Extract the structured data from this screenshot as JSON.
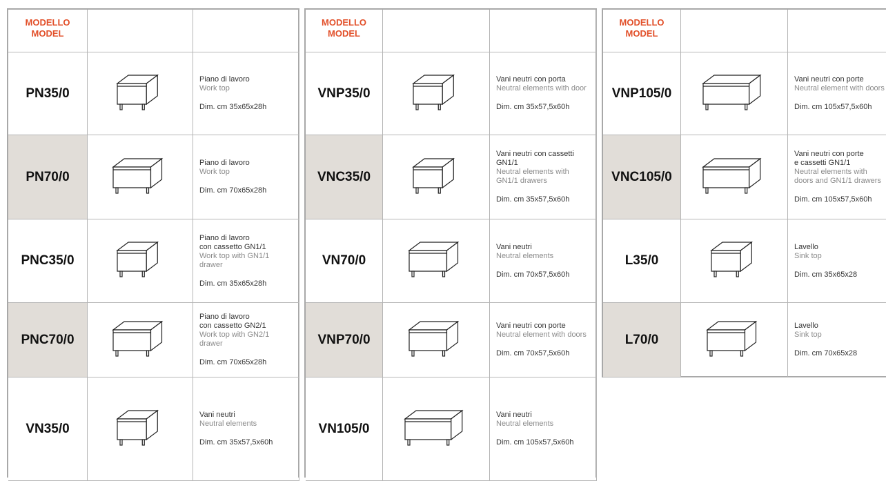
{
  "tables": [
    {
      "header": [
        "MODELLO",
        "MODEL"
      ],
      "rows": [
        {
          "model": "PN35/0",
          "it": [
            "Piano di lavoro"
          ],
          "en": [
            "Work top"
          ],
          "dim": "Dim. cm 35x65x28h"
        },
        {
          "model": "PN70/0",
          "it": [
            "Piano di lavoro"
          ],
          "en": [
            "Work top"
          ],
          "dim": "Dim. cm 70x65x28h"
        },
        {
          "model": "PNC35/0",
          "it": [
            "Piano di lavoro",
            "con cassetto GN1/1"
          ],
          "en": [
            "Work top with GN1/1",
            "drawer"
          ],
          "dim": "Dim. cm 35x65x28h"
        },
        {
          "model": "PNC70/0",
          "it": [
            "Piano di lavoro",
            "con cassetto GN2/1"
          ],
          "en": [
            "Work top with GN2/1",
            "drawer"
          ],
          "dim": "Dim. cm 70x65x28h"
        },
        {
          "model": "VN35/0",
          "it": [
            "Vani neutri"
          ],
          "en": [
            "Neutral elements"
          ],
          "dim": "Dim. cm 35x57,5x60h"
        }
      ]
    },
    {
      "header": [
        "MODELLO",
        "MODEL"
      ],
      "rows": [
        {
          "model": "VNP35/0",
          "it": [
            "Vani neutri con porta"
          ],
          "en": [
            "Neutral elements with door"
          ],
          "dim": "Dim. cm 35x57,5x60h"
        },
        {
          "model": "VNC35/0",
          "it": [
            "Vani neutri con cassetti GN1/1"
          ],
          "en": [
            "Neutral elements with",
            "GN1/1 drawers"
          ],
          "dim": "Dim. cm 35x57,5x60h"
        },
        {
          "model": "VN70/0",
          "it": [
            "Vani neutri"
          ],
          "en": [
            "Neutral elements"
          ],
          "dim": "Dim. cm 70x57,5x60h"
        },
        {
          "model": "VNP70/0",
          "it": [
            "Vani neutri con porte"
          ],
          "en": [
            "Neutral element with doors"
          ],
          "dim": "Dim. cm 70x57,5x60h"
        },
        {
          "model": "VN105/0",
          "it": [
            "Vani neutri"
          ],
          "en": [
            "Neutral elements"
          ],
          "dim": "Dim. cm 105x57,5x60h"
        }
      ]
    },
    {
      "header": [
        "MODELLO",
        "MODEL"
      ],
      "rows": [
        {
          "model": "VNP105/0",
          "it": [
            "Vani neutri con porte"
          ],
          "en": [
            "Neutral element with doors"
          ],
          "dim": "Dim. cm 105x57,5x60h"
        },
        {
          "model": "VNC105/0",
          "it": [
            "Vani neutri con porte",
            "e cassetti GN1/1"
          ],
          "en": [
            "Neutral elements with",
            "doors and GN1/1 drawers"
          ],
          "dim": "Dim. cm 105x57,5x60h"
        },
        {
          "model": "L35/0",
          "it": [
            "Lavello"
          ],
          "en": [
            "Sink top"
          ],
          "dim": "Dim. cm 35x65x28"
        },
        {
          "model": "L70/0",
          "it": [
            "Lavello"
          ],
          "en": [
            "Sink top"
          ],
          "dim": "Dim. cm 70x65x28"
        }
      ]
    }
  ]
}
